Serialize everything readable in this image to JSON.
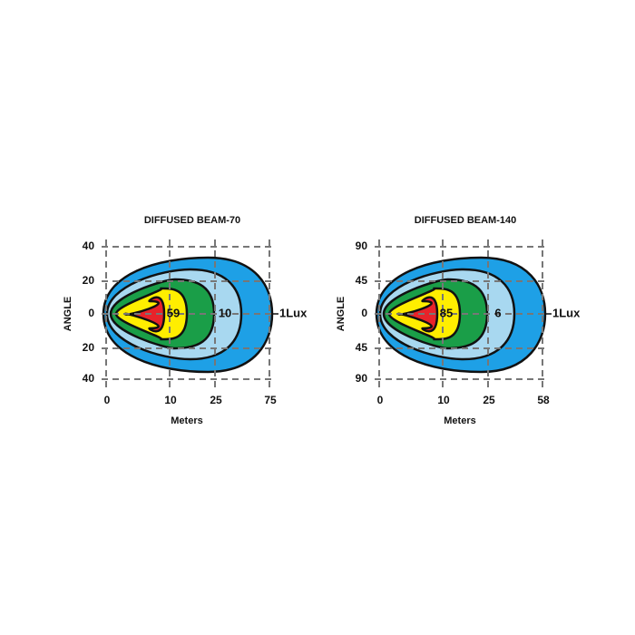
{
  "diagrams": [
    {
      "title": "DIFFUSED  BEAM-70",
      "y_axis_label": "ANGLE",
      "y_ticks": [
        "40",
        "20",
        "0",
        "20",
        "40"
      ],
      "x_ticks": [
        "0",
        "10",
        "25",
        "75"
      ],
      "x_axis_label": "Meters",
      "zone_labels": [
        "59",
        "10",
        "1Lux"
      ]
    },
    {
      "title": "DIFFUSED  BEAM-140",
      "y_axis_label": "ANGLE",
      "y_ticks": [
        "90",
        "45",
        "0",
        "45",
        "90"
      ],
      "x_ticks": [
        "0",
        "10",
        "25",
        "58"
      ],
      "x_axis_label": "Meters",
      "zone_labels": [
        "85",
        "6",
        "1Lux"
      ]
    }
  ]
}
